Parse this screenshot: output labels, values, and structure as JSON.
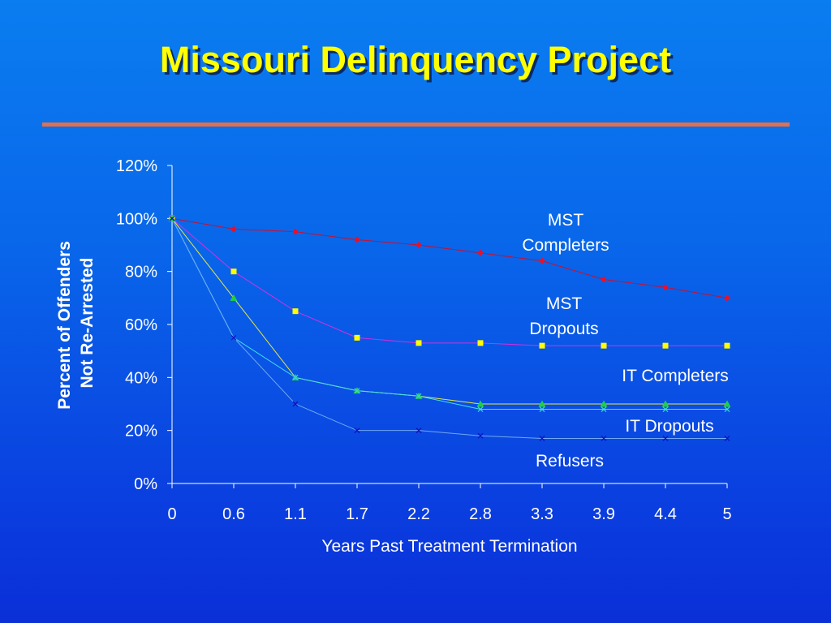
{
  "title": "Missouri Delinquency Project",
  "chart_data": {
    "type": "line",
    "title": "",
    "xlabel": "Years Past Treatment Termination",
    "ylabel": [
      "Percent of Offenders",
      "Not Re-Arrested"
    ],
    "categories": [
      "0",
      "0.6",
      "1.1",
      "1.7",
      "2.2",
      "2.8",
      "3.3",
      "3.9",
      "4.4",
      "5"
    ],
    "y_ticks": [
      "0%",
      "20%",
      "40%",
      "60%",
      "80%",
      "100%",
      "120%"
    ],
    "ylim": [
      0,
      120
    ],
    "grid": false,
    "series": [
      {
        "name": "MST Completers",
        "label_lines": [
          "MST",
          "Completers"
        ],
        "color": "#e8102a",
        "line_color": "#c81030",
        "marker": "diamond",
        "values": [
          100,
          96,
          95,
          92,
          90,
          87,
          84,
          77,
          74,
          70
        ]
      },
      {
        "name": "MST Dropouts",
        "label_lines": [
          "MST",
          "Dropouts"
        ],
        "color": "#ffff00",
        "line_color": "#d030e0",
        "marker": "square",
        "values": [
          100,
          80,
          65,
          55,
          53,
          53,
          52,
          52,
          52,
          52
        ]
      },
      {
        "name": "IT Completers",
        "label_lines": [
          "IT Completers"
        ],
        "color": "#20d040",
        "line_color": "#e8e840",
        "marker": "triangle",
        "values": [
          100,
          70,
          40,
          35,
          33,
          30,
          30,
          30,
          30,
          30
        ]
      },
      {
        "name": "IT Dropouts",
        "label_lines": [
          "IT Dropouts"
        ],
        "color": "#40d0e0",
        "line_color": "#40e0e8",
        "marker": "x",
        "values": [
          100,
          55,
          40,
          35,
          33,
          28,
          28,
          28,
          28,
          28
        ]
      },
      {
        "name": "Refusers",
        "label_lines": [
          "Refusers"
        ],
        "color": "#1010c0",
        "line_color": "#70a8f0",
        "marker": "x",
        "values": [
          100,
          55,
          30,
          20,
          20,
          18,
          17,
          17,
          17,
          17
        ]
      }
    ]
  }
}
